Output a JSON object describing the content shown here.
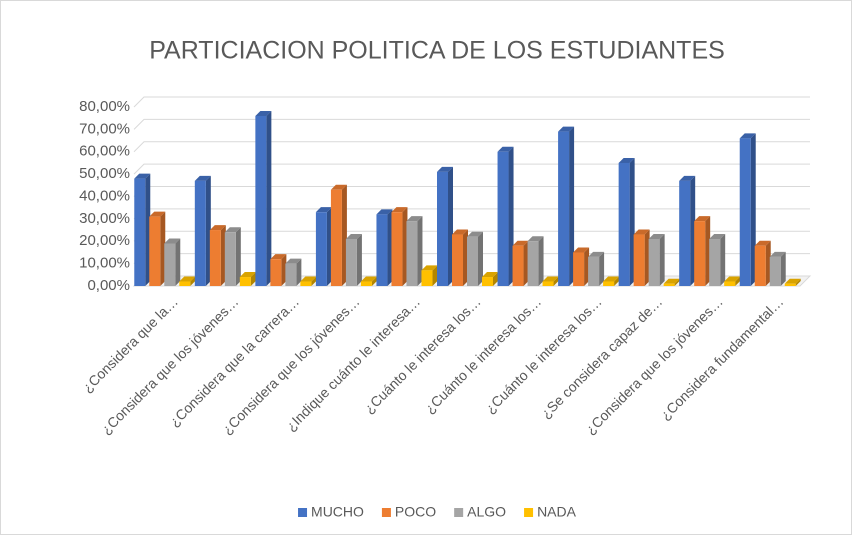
{
  "chart_data": {
    "type": "bar",
    "title": "PARTICIACION POLITICA DE LOS ESTUDIANTES",
    "categories": [
      "¿Considera que la…",
      "¿Considera que los jóvenes…",
      "¿Considera que la carrera…",
      "¿Considera que los jóvenes…",
      "¿Indique cuánto le interesa…",
      "¿Cuánto le interesa los…",
      "¿Cuánto le interesa los…",
      "¿Cuánto le interesa los…",
      "¿Se considera capaz de…",
      "¿Considera que los jóvenes…",
      "¿Considera fundamental…"
    ],
    "series": [
      {
        "name": "MUCHO",
        "color": "#4472c4",
        "values": [
          48,
          47,
          76,
          33,
          32,
          51,
          60,
          69,
          55,
          47,
          66
        ]
      },
      {
        "name": "POCO",
        "color": "#ed7d31",
        "values": [
          31,
          25,
          12,
          43,
          33,
          23,
          18,
          15,
          23,
          29,
          18
        ]
      },
      {
        "name": "ALGO",
        "color": "#a5a5a5",
        "values": [
          19,
          24,
          10,
          21,
          29,
          22,
          20,
          13,
          21,
          21,
          13
        ]
      },
      {
        "name": "NADA",
        "color": "#ffc000",
        "values": [
          2,
          4,
          2,
          2,
          7,
          4,
          2,
          2,
          1,
          2,
          1
        ]
      }
    ],
    "ylim": [
      0,
      80
    ],
    "yticks": [
      {
        "value": 0,
        "label": "0,00%"
      },
      {
        "value": 10,
        "label": "10,00%"
      },
      {
        "value": 20,
        "label": "20,00%"
      },
      {
        "value": 30,
        "label": "30,00%"
      },
      {
        "value": 40,
        "label": "40,00%"
      },
      {
        "value": 50,
        "label": "50,00%"
      },
      {
        "value": 60,
        "label": "60,00%"
      },
      {
        "value": 70,
        "label": "70,00%"
      },
      {
        "value": 80,
        "label": "80,00%"
      }
    ],
    "grid": true,
    "legend": "bottom"
  }
}
